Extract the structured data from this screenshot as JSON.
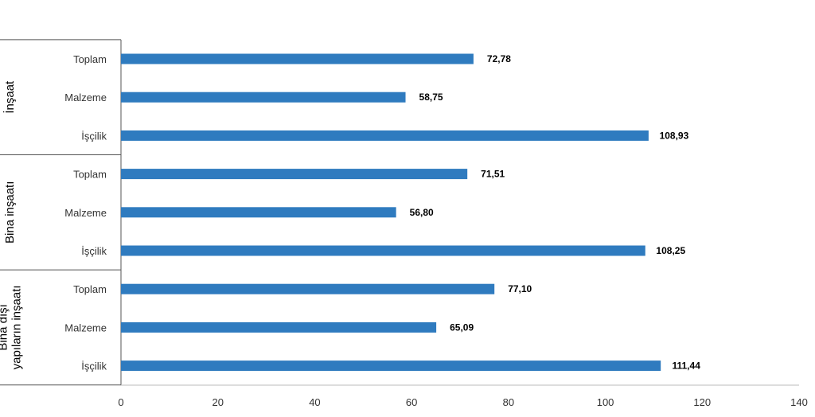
{
  "colors": {
    "bar": "#2f7bbf",
    "axis": "#555555",
    "group_line": "#555555"
  },
  "chart_data": {
    "type": "bar",
    "orientation": "horizontal",
    "groups": [
      {
        "label_lines": [
          "İnşaat"
        ],
        "bars": [
          {
            "category": "Toplam",
            "value": 72.78,
            "value_label": "72,78"
          },
          {
            "category": "Malzeme",
            "value": 58.75,
            "value_label": "58,75"
          },
          {
            "category": "İşçilik",
            "value": 108.93,
            "value_label": "108,93"
          }
        ]
      },
      {
        "label_lines": [
          "Bina inşaatı"
        ],
        "bars": [
          {
            "category": "Toplam",
            "value": 71.51,
            "value_label": "71,51"
          },
          {
            "category": "Malzeme",
            "value": 56.8,
            "value_label": "56,80"
          },
          {
            "category": "İşçilik",
            "value": 108.25,
            "value_label": "108,25"
          }
        ]
      },
      {
        "label_lines": [
          "Bina dışı",
          "yapıların inşaatı"
        ],
        "bars": [
          {
            "category": "Toplam",
            "value": 77.1,
            "value_label": "77,10"
          },
          {
            "category": "Malzeme",
            "value": 65.09,
            "value_label": "65,09"
          },
          {
            "category": "İşçilik",
            "value": 111.44,
            "value_label": "111,44"
          }
        ]
      }
    ],
    "xlim": [
      0,
      140
    ],
    "xticks": [
      0,
      20,
      40,
      60,
      80,
      100,
      120,
      140
    ],
    "grid": false,
    "legend": "none"
  }
}
